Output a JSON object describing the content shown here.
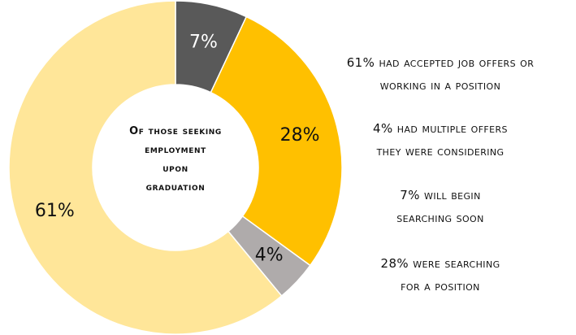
{
  "chart_data": {
    "type": "pie",
    "subtype": "donut",
    "title": "Of those seeking employment upon graduation",
    "title_lines": [
      "Of those seeking",
      "employment",
      "upon",
      "graduation"
    ],
    "categories": [
      "will begin searching soon",
      "were searching for a position",
      "had multiple offers they were considering",
      "had accepted job offers or working in a position"
    ],
    "values": [
      7,
      28,
      4,
      61
    ],
    "data_labels": [
      "7%",
      "28%",
      "4%",
      "61%"
    ],
    "colors": [
      "#595959",
      "#ffc000",
      "#afabab",
      "#ffe699"
    ],
    "legend_placement": "right",
    "legend": [
      {
        "lines": [
          "61% had accepted job offers or",
          "working in a position"
        ]
      },
      {
        "lines": [
          "4% had multiple offers",
          "they were considering"
        ]
      },
      {
        "lines": [
          "7% will begin",
          "searching soon"
        ]
      },
      {
        "lines": [
          "28% were searching",
          "for a position"
        ]
      }
    ]
  }
}
